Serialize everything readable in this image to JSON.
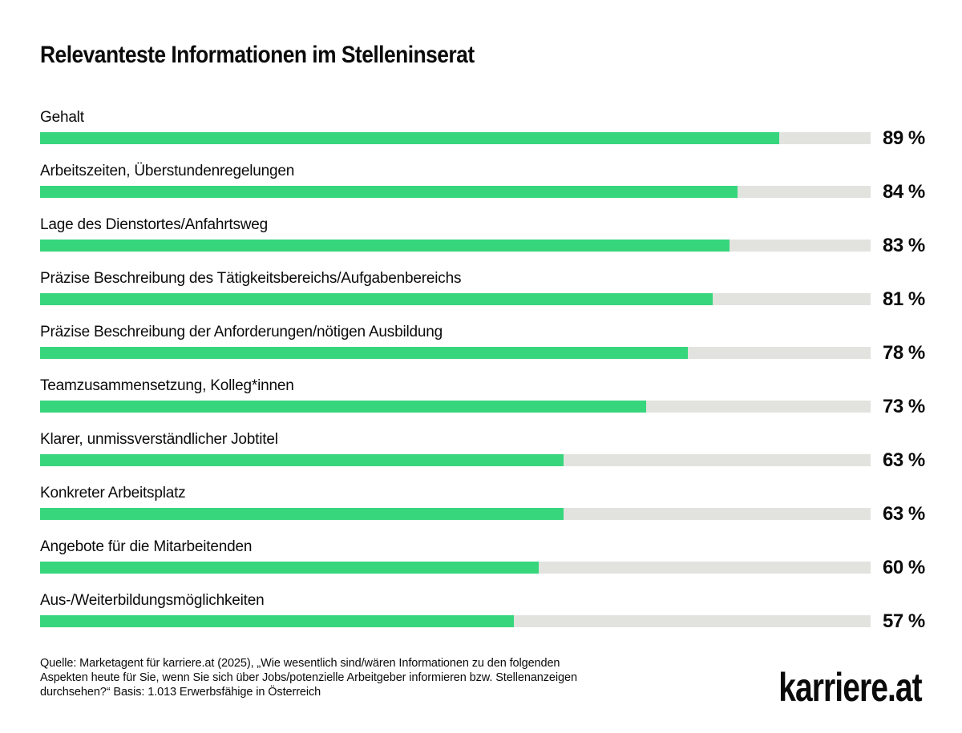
{
  "page": {
    "background": "#ffffff",
    "text_color": "#0b0b0b"
  },
  "header": {
    "title": "Relevanteste Informationen im Stelleninserat"
  },
  "chart_data": {
    "type": "bar",
    "orientation": "horizontal",
    "title": "Relevanteste Informationen im Stelleninserat",
    "categories": [
      "Gehalt",
      "Arbeitszeiten, Überstundenregelungen",
      "Lage des Dienstortes/Anfahrtsweg",
      "Präzise Beschreibung des Tätigkeitsbereichs/Aufgabenbereichs",
      "Präzise Beschreibung der Anforderungen/nötigen Ausbildung",
      "Teamzusammensetzung, Kolleg*innen",
      "Klarer, unmissverständlicher Jobtitel",
      "Konkreter Arbeitsplatz",
      "Angebote für die Mitarbeitenden",
      "Aus-/Weiterbildungsmöglichkeiten"
    ],
    "values": [
      89,
      84,
      83,
      81,
      78,
      73,
      63,
      63,
      60,
      57
    ],
    "value_labels": [
      "89 %",
      "84 %",
      "83 %",
      "81 %",
      "78 %",
      "73 %",
      "63 %",
      "63 %",
      "60 %",
      "57 %"
    ],
    "unit": "%",
    "xlim": [
      0,
      100
    ],
    "grid": false,
    "legend": false,
    "bar_color": "#37d67d",
    "track_color": "#e2e2df"
  },
  "footer": {
    "source_lines": [
      "Quelle: Marketagent für karriere.at (2025), „Wie wesentlich sind/wären Informationen zu den folgenden",
      "Aspekten heute für Sie, wenn Sie sich über Jobs/potenzielle Arbeitgeber informieren bzw. Stellenanzeigen",
      "durchsehen?“ Basis: 1.013 Erwerbsfähige in Österreich"
    ],
    "logo_text": "karriere.at"
  }
}
